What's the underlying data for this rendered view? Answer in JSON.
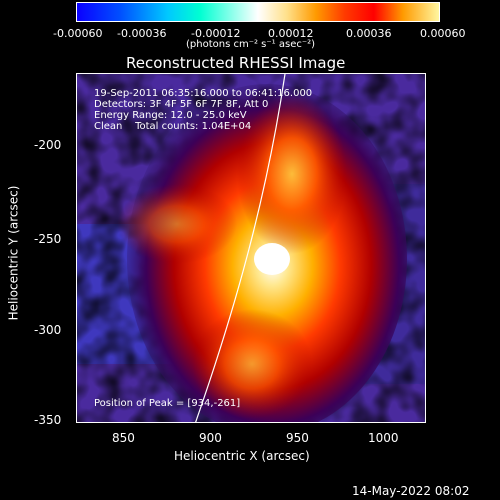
{
  "colorbar": {
    "ticks": [
      "-0.00060",
      "-0.00036",
      "-0.00012",
      "0.00012",
      "0.00036",
      "0.00060"
    ],
    "unit": "(photons cm⁻² s⁻¹ asec⁻²)"
  },
  "title": "Reconstructed RHESSI Image",
  "info": {
    "line1": "19-Sep-2011 06:35:16.000 to 06:41:16.000",
    "line2": "Detectors: 3F 4F 5F 6F 7F 8F, Att 0",
    "line3": "Energy Range: 12.0 - 25.0 keV",
    "line4": "Clean    Total counts: 1.04E+04"
  },
  "peak_text": "Position of Peak = [934,-261]",
  "x_axis": {
    "label": "Heliocentric X (arcsec)",
    "ticks": [
      "850",
      "900",
      "950",
      "1000"
    ]
  },
  "y_axis": {
    "label": "Heliocentric Y (arcsec)",
    "ticks": [
      "-200",
      "-250",
      "-300",
      "-350"
    ]
  },
  "timestamp": "14-May-2022 08:02"
}
